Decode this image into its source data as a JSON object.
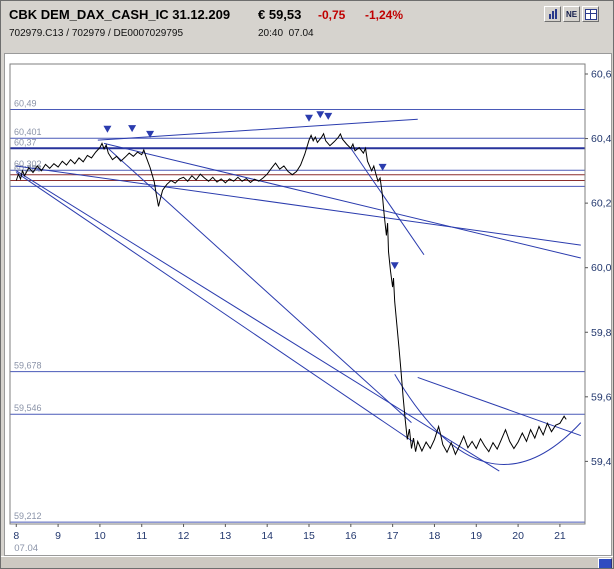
{
  "header": {
    "title": "CBK DEM_DAX_CASH_IC 31.12.209",
    "price": "€ 59,53",
    "change_abs": "-0,75",
    "change_pct": "-1,24%",
    "ids": "702979.C13 / 702979 / DE0007029795",
    "time": "20:40",
    "date": "07.04",
    "ne_label": "NE"
  },
  "colors": {
    "negative": "#c00000",
    "price_line": "#000000",
    "trend_line": "#2b3cae",
    "level_line": "#4a5ab8",
    "level_line_strong": "#27329b",
    "level_line_maroon": "#8b2f2f",
    "marker": "#2b3cae",
    "axis_label": "#23386e",
    "level_label": "#8a93a8",
    "scroll_corner": "#2f4bc0",
    "plot_border": "#7f7f7f"
  },
  "chart_data": {
    "type": "line",
    "title": "",
    "xlabel": "",
    "ylabel": "",
    "xlim": [
      7.85,
      21.6
    ],
    "ylim": [
      59.206,
      60.631
    ],
    "grid": false,
    "bottom_date_label": "07.04",
    "x_ticks": [
      {
        "value": 8,
        "label": "8"
      },
      {
        "value": 9,
        "label": "9"
      },
      {
        "value": 10,
        "label": "10"
      },
      {
        "value": 11,
        "label": "11"
      },
      {
        "value": 12,
        "label": "12"
      },
      {
        "value": 13,
        "label": "13"
      },
      {
        "value": 14,
        "label": "14"
      },
      {
        "value": 15,
        "label": "15"
      },
      {
        "value": 16,
        "label": "16"
      },
      {
        "value": 17,
        "label": "17"
      },
      {
        "value": 18,
        "label": "18"
      },
      {
        "value": 19,
        "label": "19"
      },
      {
        "value": 20,
        "label": "20"
      },
      {
        "value": 21,
        "label": "21"
      }
    ],
    "y_ticks": [
      {
        "value": 60.6,
        "label": "60,6"
      },
      {
        "value": 60.4,
        "label": "60,4"
      },
      {
        "value": 60.2,
        "label": "60,2"
      },
      {
        "value": 60.0,
        "label": "60,0"
      },
      {
        "value": 59.8,
        "label": "59,8"
      },
      {
        "value": 59.6,
        "label": "59,6"
      },
      {
        "value": 59.4,
        "label": "59,4"
      }
    ],
    "levels": [
      {
        "value": 60.49,
        "label": "60,49",
        "color": "#4a5ab8",
        "width": 1
      },
      {
        "value": 60.401,
        "label": "60,401",
        "color": "#4a5ab8",
        "width": 1
      },
      {
        "value": 60.37,
        "label": "60,37",
        "color": "#27329b",
        "width": 2
      },
      {
        "value": 60.302,
        "label": "60,302",
        "color": "#4a5ab8",
        "width": 1
      },
      {
        "value": 60.288,
        "label": "60,288",
        "color": "#8b2f2f",
        "width": 1
      },
      {
        "value": 60.27,
        "label": "",
        "color": "#8b2f2f",
        "width": 1
      },
      {
        "value": 60.252,
        "label": "",
        "color": "#4a5ab8",
        "width": 1
      },
      {
        "value": 59.678,
        "label": "59,678",
        "color": "#4a5ab8",
        "width": 1
      },
      {
        "value": 59.546,
        "label": "59,546",
        "color": "#4a5ab8",
        "width": 1
      },
      {
        "value": 59.212,
        "label": "59,212",
        "color": "#4a5ab8",
        "width": 1
      }
    ],
    "trendlines": [
      [
        8.0,
        60.315,
        21.5,
        60.07
      ],
      [
        10.1,
        60.385,
        21.5,
        60.03
      ],
      [
        8.0,
        60.3,
        19.55,
        59.37
      ],
      [
        8.0,
        60.295,
        17.5,
        59.46
      ],
      [
        10.15,
        60.375,
        17.45,
        59.52
      ],
      [
        9.95,
        60.395,
        17.6,
        60.46
      ],
      [
        16.0,
        60.37,
        17.75,
        60.04
      ],
      [
        17.6,
        59.66,
        21.5,
        59.48
      ]
    ],
    "arc": {
      "start": [
        17.05,
        59.67
      ],
      "control": [
        19.2,
        59.2
      ],
      "end": [
        21.5,
        59.52
      ]
    },
    "markers": [
      [
        10.18,
        60.418
      ],
      [
        10.77,
        60.42
      ],
      [
        11.2,
        60.402
      ],
      [
        15.0,
        60.452
      ],
      [
        15.27,
        60.463
      ],
      [
        15.46,
        60.458
      ],
      [
        16.76,
        60.3
      ],
      [
        17.05,
        59.995
      ]
    ],
    "series": [
      {
        "name": "CBK DEM_DAX_CASH_IC intraday price",
        "points": [
          [
            8.0,
            60.27
          ],
          [
            8.05,
            60.29
          ],
          [
            8.1,
            60.275
          ],
          [
            8.15,
            60.3
          ],
          [
            8.2,
            60.285
          ],
          [
            8.3,
            60.31
          ],
          [
            8.4,
            60.295
          ],
          [
            8.5,
            60.315
          ],
          [
            8.6,
            60.3
          ],
          [
            8.7,
            60.32
          ],
          [
            8.8,
            60.308
          ],
          [
            8.9,
            60.322
          ],
          [
            9.0,
            60.312
          ],
          [
            9.1,
            60.33
          ],
          [
            9.2,
            60.318
          ],
          [
            9.3,
            60.335
          ],
          [
            9.4,
            60.322
          ],
          [
            9.5,
            60.34
          ],
          [
            9.6,
            60.328
          ],
          [
            9.7,
            60.348
          ],
          [
            9.8,
            60.34
          ],
          [
            9.9,
            60.358
          ],
          [
            10.0,
            60.372
          ],
          [
            10.05,
            60.385
          ],
          [
            10.1,
            60.368
          ],
          [
            10.15,
            60.38
          ],
          [
            10.2,
            60.355
          ],
          [
            10.3,
            60.335
          ],
          [
            10.4,
            60.345
          ],
          [
            10.5,
            60.33
          ],
          [
            10.6,
            60.342
          ],
          [
            10.7,
            60.355
          ],
          [
            10.8,
            60.345
          ],
          [
            10.9,
            60.358
          ],
          [
            11.0,
            60.35
          ],
          [
            11.05,
            60.365
          ],
          [
            11.1,
            60.345
          ],
          [
            11.2,
            60.31
          ],
          [
            11.3,
            60.265
          ],
          [
            11.35,
            60.225
          ],
          [
            11.4,
            60.19
          ],
          [
            11.45,
            60.215
          ],
          [
            11.5,
            60.24
          ],
          [
            11.6,
            60.258
          ],
          [
            11.7,
            60.27
          ],
          [
            11.8,
            60.262
          ],
          [
            11.9,
            60.275
          ],
          [
            12.0,
            60.28
          ],
          [
            12.1,
            60.268
          ],
          [
            12.2,
            60.285
          ],
          [
            12.3,
            60.272
          ],
          [
            12.4,
            60.29
          ],
          [
            12.5,
            60.278
          ],
          [
            12.6,
            60.268
          ],
          [
            12.7,
            60.28
          ],
          [
            12.8,
            60.265
          ],
          [
            12.9,
            60.275
          ],
          [
            13.0,
            60.263
          ],
          [
            13.1,
            60.275
          ],
          [
            13.2,
            60.268
          ],
          [
            13.3,
            60.28
          ],
          [
            13.4,
            60.268
          ],
          [
            13.5,
            60.276
          ],
          [
            13.6,
            60.264
          ],
          [
            13.7,
            60.274
          ],
          [
            13.8,
            60.268
          ],
          [
            13.9,
            60.278
          ],
          [
            14.0,
            60.29
          ],
          [
            14.1,
            60.308
          ],
          [
            14.2,
            60.324
          ],
          [
            14.3,
            60.305
          ],
          [
            14.4,
            60.315
          ],
          [
            14.5,
            60.298
          ],
          [
            14.6,
            60.288
          ],
          [
            14.7,
            60.298
          ],
          [
            14.8,
            60.318
          ],
          [
            14.9,
            60.352
          ],
          [
            15.0,
            60.395
          ],
          [
            15.05,
            60.41
          ],
          [
            15.1,
            60.393
          ],
          [
            15.15,
            60.405
          ],
          [
            15.2,
            60.388
          ],
          [
            15.3,
            60.404
          ],
          [
            15.35,
            60.415
          ],
          [
            15.4,
            60.393
          ],
          [
            15.5,
            60.378
          ],
          [
            15.6,
            60.39
          ],
          [
            15.7,
            60.404
          ],
          [
            15.75,
            60.414
          ],
          [
            15.8,
            60.398
          ],
          [
            15.9,
            60.383
          ],
          [
            16.0,
            60.37
          ],
          [
            16.05,
            60.383
          ],
          [
            16.1,
            60.362
          ],
          [
            16.2,
            60.372
          ],
          [
            16.3,
            60.355
          ],
          [
            16.35,
            60.37
          ],
          [
            16.4,
            60.33
          ],
          [
            16.5,
            60.3
          ],
          [
            16.55,
            60.315
          ],
          [
            16.6,
            60.29
          ],
          [
            16.65,
            60.268
          ],
          [
            16.7,
            60.278
          ],
          [
            16.75,
            60.23
          ],
          [
            16.8,
            60.16
          ],
          [
            16.85,
            60.1
          ],
          [
            16.88,
            60.138
          ],
          [
            16.9,
            60.05
          ],
          [
            16.95,
            59.99
          ],
          [
            17.0,
            59.94
          ],
          [
            17.02,
            59.968
          ],
          [
            17.05,
            59.895
          ],
          [
            17.1,
            59.825
          ],
          [
            17.15,
            59.755
          ],
          [
            17.2,
            59.68
          ],
          [
            17.25,
            59.6
          ],
          [
            17.3,
            59.53
          ],
          [
            17.35,
            59.468
          ],
          [
            17.4,
            59.5
          ],
          [
            17.45,
            59.44
          ],
          [
            17.5,
            59.472
          ],
          [
            17.55,
            59.43
          ],
          [
            17.6,
            59.462
          ],
          [
            17.7,
            59.432
          ],
          [
            17.8,
            59.46
          ],
          [
            17.9,
            59.44
          ],
          [
            18.0,
            59.468
          ],
          [
            18.1,
            59.508
          ],
          [
            18.15,
            59.482
          ],
          [
            18.2,
            59.452
          ],
          [
            18.3,
            59.428
          ],
          [
            18.4,
            59.458
          ],
          [
            18.5,
            59.422
          ],
          [
            18.6,
            59.448
          ],
          [
            18.7,
            59.478
          ],
          [
            18.8,
            59.442
          ],
          [
            18.9,
            59.462
          ],
          [
            19.0,
            59.44
          ],
          [
            19.1,
            59.47
          ],
          [
            19.2,
            59.448
          ],
          [
            19.3,
            59.43
          ],
          [
            19.4,
            59.458
          ],
          [
            19.5,
            59.438
          ],
          [
            19.6,
            59.468
          ],
          [
            19.7,
            59.498
          ],
          [
            19.8,
            59.462
          ],
          [
            19.9,
            59.44
          ],
          [
            20.0,
            59.46
          ],
          [
            20.1,
            59.488
          ],
          [
            20.2,
            59.462
          ],
          [
            20.3,
            59.498
          ],
          [
            20.4,
            59.472
          ],
          [
            20.5,
            59.508
          ],
          [
            20.6,
            59.482
          ],
          [
            20.7,
            59.518
          ],
          [
            20.8,
            59.492
          ],
          [
            20.9,
            59.512
          ],
          [
            21.0,
            59.518
          ],
          [
            21.1,
            59.54
          ],
          [
            21.15,
            59.53
          ]
        ]
      }
    ]
  }
}
